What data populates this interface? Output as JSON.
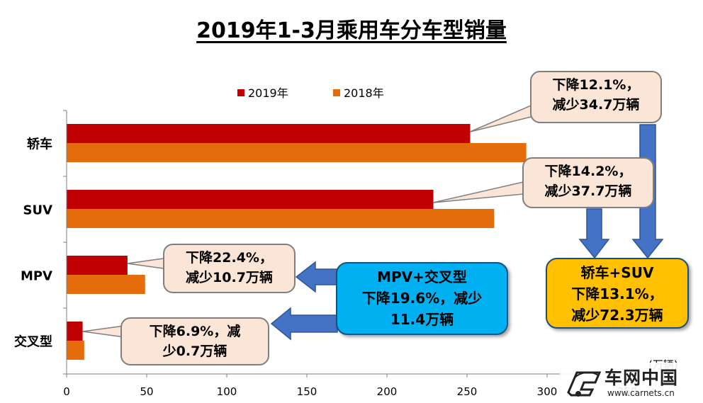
{
  "chart_data": {
    "type": "bar",
    "orientation": "horizontal",
    "title": "2019年1-3月乘用车分车型销量",
    "categories": [
      "轿车",
      "SUV",
      "MPV",
      "交叉型"
    ],
    "series": [
      {
        "name": "2019年",
        "color": "#c00000",
        "values": [
          252,
          229,
          38,
          10
        ]
      },
      {
        "name": "2018年",
        "color": "#e46c0a",
        "values": [
          287,
          267,
          49,
          11
        ]
      }
    ],
    "xlim": [
      0,
      350
    ],
    "x_ticks": [
      0,
      50,
      100,
      150,
      200,
      250,
      300,
      350
    ],
    "unit": "(万辆)",
    "legend_position": "top",
    "grid": false
  },
  "callouts": {
    "sedan": {
      "line1": "下降12.1%，",
      "line2": "减少34.7万辆"
    },
    "suv": {
      "line1": "下降14.2%，",
      "line2": "减少37.7万辆"
    },
    "mpv": {
      "line1": "下降22.4%，",
      "line2": "减少10.7万辆"
    },
    "crossover": {
      "line1": "下降6.9%，减",
      "line2": "少0.7万辆"
    },
    "mpv_crossover": {
      "line1": "MPV+交叉型",
      "line2": "下降19.6%，减少",
      "line3": "11.4万辆"
    },
    "sedan_suv": {
      "line1": "轿车+SUV",
      "line2": "下降13.1%，",
      "line3": "减少72.3万辆"
    }
  },
  "watermark": {
    "text": "车网中国",
    "url": "www.carnets.cn"
  }
}
